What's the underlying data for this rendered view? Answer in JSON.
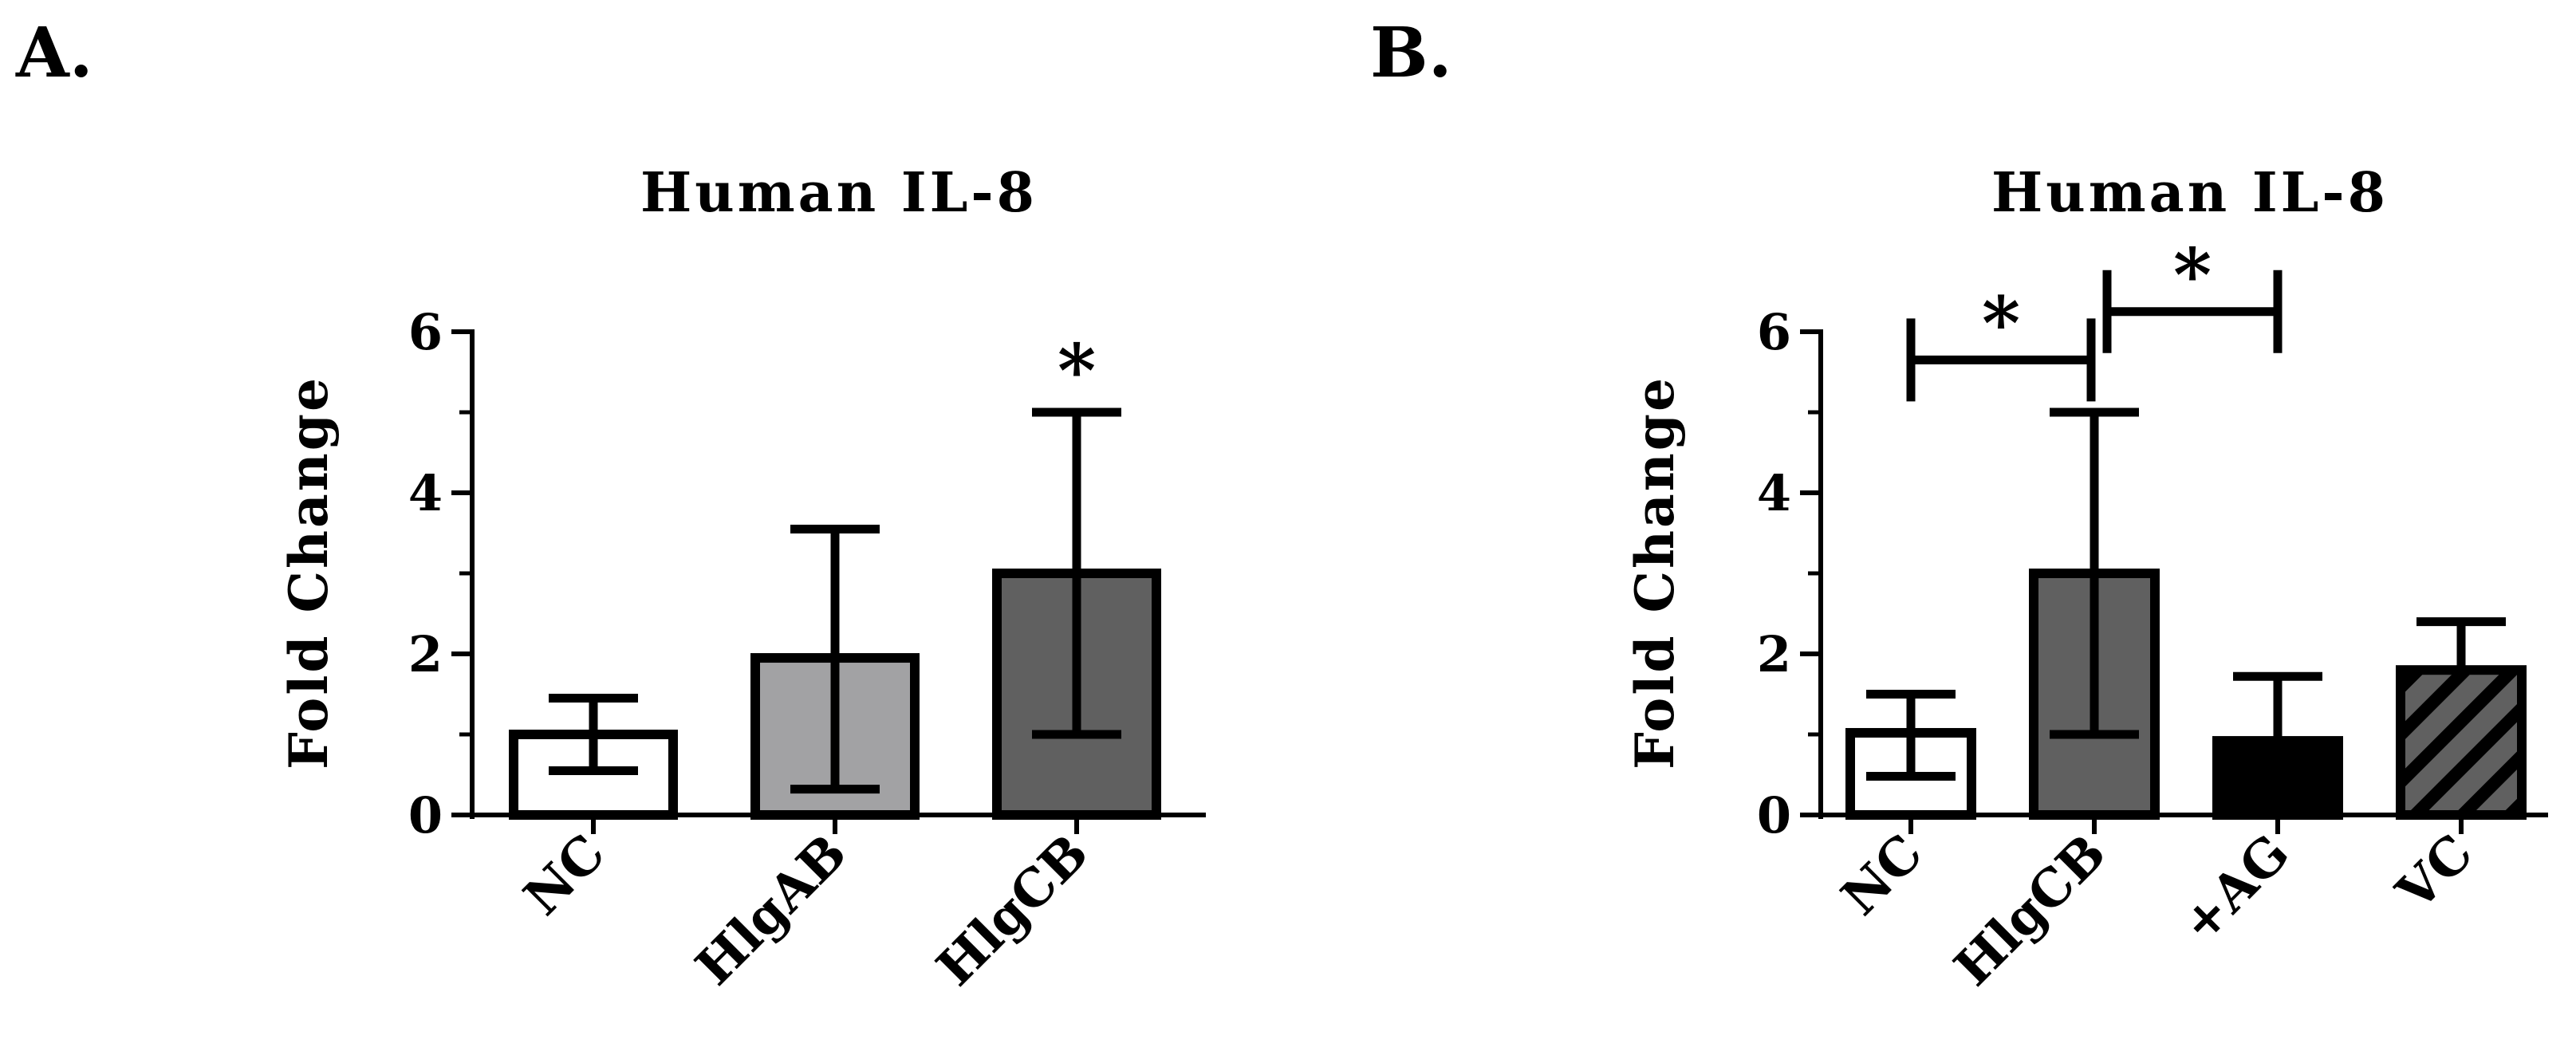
{
  "panels": [
    {
      "label": "A."
    },
    {
      "label": "B."
    }
  ],
  "colors": {
    "white": "#ffffff",
    "light_gray": "#a2a2a4",
    "dark_gray": "#606060",
    "black": "#000000",
    "outline": "#000000"
  },
  "chart_data": [
    {
      "type": "bar",
      "panel": "A.",
      "title": "Human IL-8",
      "ylabel": "Fold Change",
      "xlabel": "",
      "ylim": [
        0,
        6
      ],
      "yticks": [
        0,
        2,
        4,
        6
      ],
      "categories": [
        "NC",
        "HlgAB",
        "HlgCB"
      ],
      "values": [
        1.0,
        1.95,
        3.0
      ],
      "error_upper": [
        1.45,
        3.55,
        5.0
      ],
      "error_lower": [
        0.55,
        0.32,
        1.0
      ],
      "fills": [
        "white",
        "light_gray",
        "dark_gray"
      ],
      "hatched": [
        false,
        false,
        false
      ],
      "significance": [
        {
          "category": "HlgCB",
          "label": "*"
        }
      ],
      "grid": false,
      "legend": "none"
    },
    {
      "type": "bar",
      "panel": "B.",
      "title": "Human IL-8",
      "ylabel": "Fold Change",
      "xlabel": "",
      "ylim": [
        0,
        6
      ],
      "yticks": [
        0,
        2,
        4,
        6
      ],
      "categories": [
        "NC",
        "HlgCB",
        "+AG",
        "VC"
      ],
      "values": [
        1.02,
        3.0,
        0.92,
        1.8
      ],
      "error_upper": [
        1.5,
        5.0,
        1.72,
        2.4
      ],
      "error_lower": [
        0.48,
        1.0,
        null,
        null
      ],
      "fills": [
        "white",
        "dark_gray",
        "black",
        "dark_gray"
      ],
      "hatched": [
        false,
        false,
        false,
        true
      ],
      "comparisons": [
        {
          "from": "NC",
          "to": "HlgCB",
          "y": 5.65,
          "label": "*"
        },
        {
          "from": "HlgCB",
          "to": "+AG",
          "y": 6.25,
          "label": "*"
        }
      ],
      "grid": false,
      "legend": "none"
    }
  ]
}
